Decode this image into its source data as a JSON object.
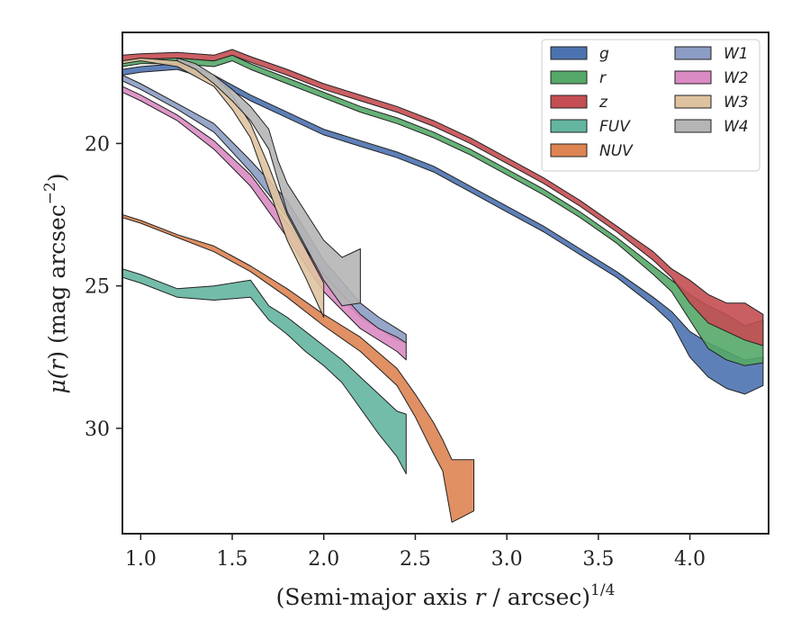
{
  "chart_data": {
    "type": "area",
    "xlabel_main": "(Semi-major axis ",
    "xlabel_var": "r",
    "xlabel_tail": " / arcsec)",
    "xlabel_sup": "1/4",
    "ylabel_main": "μ(",
    "ylabel_var": "r",
    "ylabel_tail": ") (mag arcsec",
    "ylabel_sup": "−2",
    "ylabel_close": ")",
    "xlim": [
      0.9,
      4.43
    ],
    "ylim": [
      33.7,
      16.1
    ],
    "y_inverted": true,
    "xticks": [
      {
        "value": 1.0,
        "label": "1.0"
      },
      {
        "value": 1.5,
        "label": "1.5"
      },
      {
        "value": 2.0,
        "label": "2.0"
      },
      {
        "value": 2.5,
        "label": "2.5"
      },
      {
        "value": 3.0,
        "label": "3.0"
      },
      {
        "value": 3.5,
        "label": "3.5"
      },
      {
        "value": 4.0,
        "label": "4.0"
      }
    ],
    "yticks": [
      {
        "value": 20,
        "label": "20"
      },
      {
        "value": 25,
        "label": "25"
      },
      {
        "value": 30,
        "label": "30"
      }
    ],
    "grid": false,
    "legend_position": "top-right",
    "legend_columns": 2,
    "series": [
      {
        "name": "g",
        "color": "#4c72b0",
        "x": [
          0.9,
          1.0,
          1.2,
          1.4,
          1.6,
          1.8,
          2.0,
          2.2,
          2.4,
          2.6,
          2.8,
          3.0,
          3.2,
          3.4,
          3.6,
          3.8,
          3.9,
          4.0,
          4.1,
          4.2,
          4.3,
          4.4
        ],
        "y1": [
          17.4,
          17.3,
          17.2,
          17.6,
          18.3,
          18.9,
          19.5,
          19.9,
          20.3,
          20.8,
          21.5,
          22.2,
          22.9,
          23.7,
          24.5,
          25.4,
          25.9,
          26.6,
          27.0,
          27.3,
          27.6,
          27.5
        ],
        "y2": [
          17.6,
          17.5,
          17.4,
          17.8,
          18.5,
          19.1,
          19.7,
          20.1,
          20.5,
          21.0,
          21.7,
          22.4,
          23.1,
          23.9,
          24.7,
          25.7,
          26.3,
          27.5,
          28.2,
          28.6,
          28.8,
          28.5
        ]
      },
      {
        "name": "r",
        "color": "#55a868",
        "x": [
          0.9,
          1.0,
          1.2,
          1.4,
          1.5,
          1.6,
          1.8,
          2.0,
          2.2,
          2.4,
          2.6,
          2.8,
          3.0,
          3.2,
          3.4,
          3.6,
          3.8,
          3.9,
          4.0,
          4.1,
          4.2,
          4.3,
          4.4
        ],
        "y1": [
          17.1,
          17.0,
          17.0,
          17.1,
          16.9,
          17.2,
          17.7,
          18.2,
          18.7,
          19.1,
          19.6,
          20.2,
          20.9,
          21.6,
          22.4,
          23.3,
          24.3,
          24.8,
          25.3,
          25.7,
          26.0,
          26.4,
          26.2
        ],
        "y2": [
          17.3,
          17.2,
          17.2,
          17.3,
          17.1,
          17.4,
          17.9,
          18.4,
          18.9,
          19.3,
          19.8,
          20.4,
          21.1,
          21.8,
          22.6,
          23.5,
          24.6,
          25.2,
          26.2,
          27.2,
          27.6,
          27.8,
          27.7
        ]
      },
      {
        "name": "z",
        "color": "#c44e52",
        "x": [
          0.9,
          1.0,
          1.2,
          1.4,
          1.5,
          1.6,
          1.8,
          2.0,
          2.2,
          2.4,
          2.6,
          2.8,
          3.0,
          3.2,
          3.4,
          3.6,
          3.8,
          3.9,
          4.0,
          4.1,
          4.2,
          4.3,
          4.4
        ],
        "y1": [
          16.9,
          16.85,
          16.8,
          16.9,
          16.7,
          16.95,
          17.4,
          17.9,
          18.3,
          18.7,
          19.2,
          19.8,
          20.5,
          21.2,
          22.0,
          22.9,
          23.8,
          24.4,
          24.8,
          25.3,
          25.6,
          25.6,
          26.0
        ],
        "y2": [
          17.1,
          17.05,
          17.0,
          17.1,
          16.9,
          17.15,
          17.6,
          18.1,
          18.5,
          18.9,
          19.4,
          20.0,
          20.7,
          21.4,
          22.2,
          23.1,
          24.1,
          24.7,
          25.6,
          26.3,
          26.6,
          26.9,
          27.1
        ]
      },
      {
        "name": "FUV",
        "color": "#64b5a0",
        "x": [
          0.9,
          1.0,
          1.2,
          1.4,
          1.6,
          1.7,
          1.8,
          1.9,
          2.0,
          2.1,
          2.2,
          2.3,
          2.4,
          2.45
        ],
        "y1": [
          24.4,
          24.6,
          25.1,
          25.0,
          24.8,
          25.7,
          26.1,
          26.6,
          27.1,
          27.6,
          28.2,
          28.8,
          29.4,
          29.5
        ],
        "y2": [
          24.7,
          24.9,
          25.4,
          25.5,
          25.4,
          26.2,
          26.7,
          27.3,
          27.8,
          28.4,
          29.3,
          30.2,
          31.0,
          31.6
        ]
      },
      {
        "name": "NUV",
        "color": "#dd8452",
        "x": [
          0.9,
          1.0,
          1.2,
          1.4,
          1.6,
          1.8,
          2.0,
          2.2,
          2.4,
          2.5,
          2.6,
          2.65,
          2.7,
          2.82
        ],
        "y1": [
          22.5,
          22.7,
          23.2,
          23.6,
          24.3,
          25.1,
          26.0,
          26.8,
          27.9,
          28.8,
          29.8,
          30.4,
          31.1,
          31.1
        ],
        "y2": [
          22.6,
          22.8,
          23.3,
          23.8,
          24.5,
          25.4,
          26.4,
          27.3,
          28.5,
          29.6,
          30.9,
          31.5,
          33.3,
          32.9
        ]
      },
      {
        "name": "W1",
        "color": "#8c9dc4",
        "x": [
          0.9,
          1.0,
          1.2,
          1.4,
          1.6,
          1.8,
          2.0,
          2.2,
          2.3,
          2.4,
          2.45
        ],
        "y1": [
          17.6,
          17.9,
          18.6,
          19.3,
          20.6,
          22.0,
          24.1,
          25.6,
          26.1,
          26.5,
          26.7
        ],
        "y2": [
          17.8,
          18.1,
          18.8,
          19.6,
          21.0,
          22.6,
          24.8,
          26.1,
          26.5,
          26.9,
          27.0
        ]
      },
      {
        "name": "W2",
        "color": "#da8bc3",
        "x": [
          0.9,
          1.0,
          1.2,
          1.4,
          1.6,
          1.8,
          2.0,
          2.2,
          2.3,
          2.4,
          2.45
        ],
        "y1": [
          18.0,
          18.3,
          19.0,
          19.9,
          21.1,
          22.8,
          24.6,
          26.0,
          26.5,
          26.8,
          27.0
        ],
        "y2": [
          18.2,
          18.5,
          19.2,
          20.2,
          21.5,
          23.3,
          25.2,
          26.5,
          26.9,
          27.3,
          27.6
        ]
      },
      {
        "name": "W3",
        "color": "#dfc3a0",
        "x": [
          0.9,
          1.0,
          1.2,
          1.4,
          1.5,
          1.6,
          1.7,
          1.8,
          1.9,
          2.0
        ],
        "y1": [
          17.1,
          17.0,
          17.1,
          17.6,
          18.3,
          19.3,
          20.8,
          22.5,
          23.7,
          24.9
        ],
        "y2": [
          17.2,
          17.1,
          17.3,
          18.0,
          18.8,
          19.8,
          21.6,
          23.4,
          24.7,
          26.1
        ]
      },
      {
        "name": "W4",
        "color": "#b5b5b5",
        "x": [
          1.2,
          1.3,
          1.4,
          1.5,
          1.6,
          1.7,
          1.75,
          1.8,
          1.9,
          2.0,
          2.1,
          2.2
        ],
        "y1": [
          17.0,
          17.2,
          17.6,
          18.1,
          18.7,
          19.5,
          20.6,
          21.4,
          22.4,
          23.4,
          24.0,
          23.7
        ],
        "y2": [
          17.1,
          17.4,
          17.9,
          18.5,
          19.2,
          20.2,
          21.3,
          22.4,
          23.6,
          24.8,
          25.7,
          25.6
        ]
      }
    ]
  }
}
